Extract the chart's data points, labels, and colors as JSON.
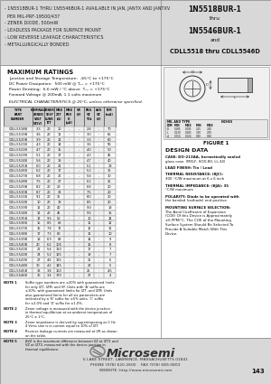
{
  "bg_color": "#d8d8d8",
  "body_bg": "#ffffff",
  "table_header_bg": "#c8c8c8",
  "title_right_lines": [
    "1N5518BUR-1",
    "thru",
    "1N5546BUR-1",
    "and",
    "CDLL5518 thru CDLL5546D"
  ],
  "bullet_lines": [
    "- 1N5518BUR-1 THRU 1N5546BUR-1 AVAILABLE IN JAN, JANTX AND JANTXV",
    "  PER MIL-PRF-19500/437",
    "- ZENER DIODE, 500mW",
    "- LEADLESS PACKAGE FOR SURFACE MOUNT",
    "- LOW REVERSE LEAKAGE CHARACTERISTICS",
    "- METALLURGICALLY BONDED"
  ],
  "max_ratings_title": "MAXIMUM RATINGS",
  "max_ratings_lines": [
    "Junction and Storage Temperature:  -65°C to +175°C",
    "DC Power Dissipation:  500 mW @ Tₖₐ = +175°C",
    "Power Derating:  6.6 mW / °C above  Tₖₐ = +175°C",
    "Forward Voltage @ 200mA: 1.1 volts maximum"
  ],
  "elec_char_title": "ELECTRICAL CHARACTERISTICS @ 25°C, unless otherwise specified.",
  "figure_title": "FIGURE 1",
  "design_data_title": "DESIGN DATA",
  "design_data_lines": [
    "CASE: DO-213AA, hermetically sealed",
    "glass case. (MELF, SOD-80, LL-34)",
    "",
    "LEAD FINISH: Tin / Lead",
    "",
    "THERMAL RESISTANCE: (θJC):",
    "300 °C/W maximum at 6 x 6 inch",
    "",
    "THERMAL IMPEDANCE: (θJA): 35",
    "°C/W maximum",
    "",
    "POLARITY: Diode to be operated with",
    "the banded (cathode) end positive.",
    "",
    "MOUNTING SURFACE SELECTION:",
    "The Axial Coefficient of Expansion",
    "(COE) Of this Device is Approximately",
    "±6 PPM/°C. The COE of the Mounting",
    "Surface System Should Be Selected To",
    "Provide A Suitable Match With This",
    "Device."
  ],
  "footer_company": "Microsemi",
  "footer_address": "6 LAKE STREET, LAWRENCE, MASSACHUSETTS 01841",
  "footer_phone": "PHONE (978) 620-2600",
  "footer_fax": "FAX (978) 689-0803",
  "footer_website": "WEBSITE: http://www.microsemi.com",
  "page_number": "143",
  "col_headers": [
    [
      "TYPE",
      "PART",
      "NUMBER"
    ],
    [
      "NOMINAL",
      "ZENER",
      "VOLT"
    ],
    [
      "ZENER",
      "TEST",
      "CURRENT"
    ],
    [
      "MAX ZENER",
      "IMPEDANCE",
      "AT IZT BELOW"
    ],
    [
      "MAXIMUM REVERSE LEAKAGE",
      "CURRENT",
      "AT VOLTAGE"
    ],
    [
      "REGULATOR",
      "VOLTAGE",
      "TOLERANCE"
    ],
    [
      "MAX",
      "DC",
      "ZENER",
      "CURRENT"
    ]
  ],
  "col_headers2": [
    [
      "",
      "VZ(NOM)",
      "(VOLTS) (1)"
    ],
    [
      "",
      "IZT",
      "(VOLTS) (1)"
    ],
    [
      "",
      "ZZT",
      "(Ω) (1)"
    ],
    [
      "IZT (mA)",
      "IR (μA)",
      "VR (VOLTS)"
    ],
    [
      "",
      "AVG",
      "(VOLTS) (2)"
    ],
    [
      "",
      "IZM",
      "(mA)"
    ]
  ],
  "table_rows": [
    [
      "CDLL5518B",
      "3.3",
      "20",
      "10",
      "-",
      "-",
      "2.8",
      "-",
      "70"
    ],
    [
      "CDLL5519B",
      "3.6",
      "20",
      "11",
      "-",
      "-",
      "3.0",
      "-",
      "65"
    ],
    [
      "CDLL5520B",
      "3.9",
      "20",
      "13",
      "-",
      "-",
      "3.3",
      "-",
      "60"
    ],
    [
      "CDLL5521B",
      "4.3",
      "20",
      "14",
      "-",
      "-",
      "3.6",
      "-",
      "55"
    ],
    [
      "CDLL5522B",
      "4.7",
      "20",
      "16",
      "-",
      "-",
      "4.0",
      "-",
      "50"
    ],
    [
      "CDLL5523B",
      "5.1",
      "20",
      "17",
      "-",
      "-",
      "4.3",
      "-",
      "45"
    ],
    [
      "CDLL5524B",
      "5.6",
      "20",
      "19",
      "-",
      "-",
      "4.7",
      "-",
      "40"
    ],
    [
      "CDLL5525B",
      "6.0",
      "20",
      "24",
      "-",
      "-",
      "5.1",
      "-",
      "38"
    ],
    [
      "CDLL5526B",
      "6.2",
      "20",
      "17",
      "-",
      "-",
      "5.2",
      "-",
      "35"
    ],
    [
      "CDLL5527B",
      "6.8",
      "20",
      "22",
      "-",
      "-",
      "5.6",
      "-",
      "30"
    ],
    [
      "CDLL5528B",
      "7.5",
      "20",
      "27",
      "-",
      "-",
      "6.2",
      "-",
      "25"
    ],
    [
      "CDLL5529B",
      "8.2",
      "20",
      "29",
      "-",
      "-",
      "6.8",
      "-",
      "20"
    ],
    [
      "CDLL5530B",
      "8.7",
      "20",
      "33",
      "-",
      "-",
      "7.5",
      "-",
      "20"
    ],
    [
      "CDLL5531B",
      "9.1",
      "20",
      "35",
      "-",
      "-",
      "8.0",
      "-",
      "20"
    ],
    [
      "CDLL5532B",
      "10",
      "20",
      "38",
      "-",
      "-",
      "8.5",
      "-",
      "20"
    ],
    [
      "CDLL5533B",
      "11",
      "20",
      "40",
      "-",
      "-",
      "9.0",
      "-",
      "18"
    ],
    [
      "CDLL5534B",
      "12",
      "20",
      "45",
      "-",
      "-",
      "9.5",
      "-",
      "15"
    ],
    [
      "CDLL5535B",
      "13",
      "9.5",
      "52",
      "-",
      "-",
      "10",
      "-",
      "14"
    ],
    [
      "CDLL5536B",
      "15",
      "8.5",
      "68",
      "-",
      "-",
      "11",
      "-",
      "12"
    ],
    [
      "CDLL5537B",
      "16",
      "7.8",
      "72",
      "-",
      "-",
      "12",
      "-",
      "11"
    ],
    [
      "CDLL5538B",
      "17",
      "7.3",
      "80",
      "-",
      "-",
      "13",
      "-",
      "10"
    ],
    [
      "CDLL5539B",
      "18",
      "6.9",
      "88",
      "-",
      "-",
      "14",
      "-",
      "9"
    ],
    [
      "CDLL5540B",
      "20",
      "6.2",
      "105",
      "-",
      "-",
      "16",
      "-",
      "8"
    ],
    [
      "CDLL5541B",
      "22",
      "5.6",
      "110",
      "-",
      "-",
      "17",
      "-",
      "7"
    ],
    [
      "CDLL5542B",
      "24",
      "5.2",
      "125",
      "-",
      "-",
      "19",
      "-",
      "7"
    ],
    [
      "CDLL5543B",
      "27",
      "4.6",
      "135",
      "-",
      "-",
      "21",
      "-",
      "6"
    ],
    [
      "CDLL5544B",
      "30",
      "4.2",
      "145",
      "-",
      "-",
      "23",
      "-",
      "5"
    ],
    [
      "CDLL5545B",
      "33",
      "3.8",
      "160",
      "-",
      "-",
      "25",
      "-",
      "4.5"
    ],
    [
      "CDLL5546B",
      "36",
      "3.4",
      "170",
      "-",
      "-",
      "27",
      "-",
      "4"
    ]
  ],
  "notes": [
    [
      "NOTE 1",
      "Suffix type numbers are ±20% with guaranteed limits for only IZT, IZM, and VF. Units with 'A' suffix are ±10%, with guaranteed limits for IZT, and IZM. Units also guaranteed limits for all six parameters are indicated by a 'B' suffix for ±5% units, 'C' suffix for ±2.0% and 'D' suffix for ±1.0%."
    ],
    [
      "NOTE 2",
      "Zener voltage is measured with the device junction in thermal equilibrium at an ambient temperature of 25°C ± 1°C."
    ],
    [
      "NOTE 3",
      "Zener impedance is derived by superimposing on 1 Hz 4 Vrms sine is in current equal to 10% of IZT."
    ],
    [
      "NOTE 4",
      "Reverse leakage currents are measured at VR as shown on the table."
    ],
    [
      "NOTE 5",
      "ΔVZ is the maximum difference between VZ at IZT1 and VZ at IZT2, measured with the device junction in thermal equilibrium."
    ]
  ]
}
